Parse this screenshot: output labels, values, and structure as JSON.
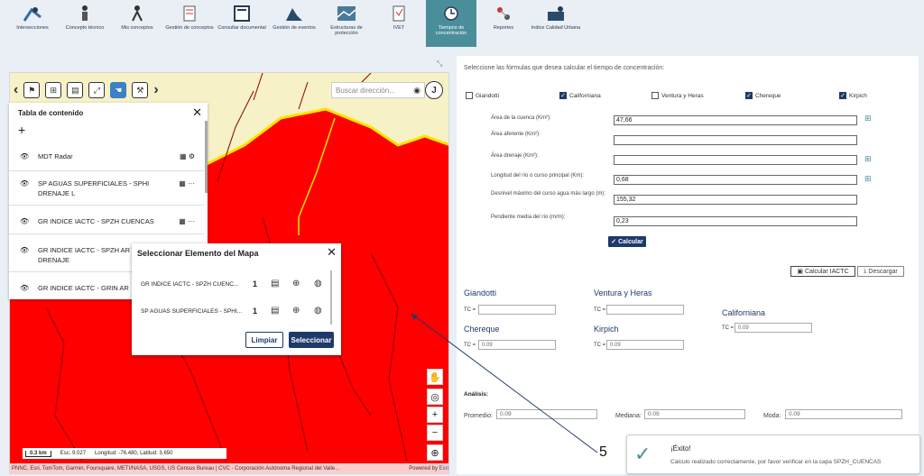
{
  "toolbar": {
    "items": [
      {
        "label": "Intersecciones",
        "icon": "intersections-icon"
      },
      {
        "label": "Concepto técnico",
        "icon": "technical-concept-icon"
      },
      {
        "label": "Mis conceptos",
        "icon": "my-concepts-icon"
      },
      {
        "label": "Gestión de conceptos",
        "icon": "concept-management-icon"
      },
      {
        "label": "Consultar documental",
        "icon": "document-query-icon"
      },
      {
        "label": "Gestión de eventos",
        "icon": "event-management-icon"
      },
      {
        "label": "Estructuras de protección",
        "icon": "protection-structures-icon"
      },
      {
        "label": "IVET",
        "icon": "ivet-icon"
      },
      {
        "label": "Tiempos de concentración",
        "icon": "concentration-time-icon"
      },
      {
        "label": "Reportes",
        "icon": "reports-icon"
      },
      {
        "label": "Indice Calidad Urbana",
        "icon": "urban-quality-icon"
      }
    ],
    "active_index": 8
  },
  "map": {
    "search_placeholder": "Buscar dirección...",
    "j_button": "J",
    "scale": "0.3 km",
    "esc": "Esc. 9.027",
    "coords": "Longitud: -76.480, Latitud: 3.650",
    "attribution": "PNNC, Esri, TomTom, Garmin, Foursquare, METI/NASA, USGS, US Census Bureau | CVC - Corporación Autónoma Regional del Valle...",
    "powered": "Powered by",
    "esri": "Esri"
  },
  "toc": {
    "title": "Tabla de contenido",
    "layers": [
      "MDT Radar",
      "SP AGUAS SUPERFICIALES - SPHI DRENAJE L",
      "GR INDICE IACTC - SPZH CUENCAS",
      "GR INDICE IACTC - SPZH AR DRENAJE",
      "GR INDICE IACTC - GRIN AR"
    ]
  },
  "modal": {
    "title": "Seleccionar Elemento del Mapa",
    "rows": [
      {
        "name": "GR INDICE IACTC - SPZH CUENC...",
        "count": "1"
      },
      {
        "name": "SP AGUAS SUPERFICIALES - SPHI...",
        "count": "1"
      }
    ],
    "btn_clear": "Limpiar",
    "btn_select": "Seleccionar"
  },
  "panel": {
    "intro": "Seleccione las fórmulas que desea calcular el tiempo de concentración:",
    "checkboxes": [
      {
        "label": "Giandotti",
        "checked": false
      },
      {
        "label": "Californiana",
        "checked": true
      },
      {
        "label": "Ventura y Heras",
        "checked": false
      },
      {
        "label": "Chereque",
        "checked": true
      },
      {
        "label": "Kirpich",
        "checked": true
      }
    ],
    "fields": [
      {
        "label": "Área de la cuenca (Km²):",
        "value": "47,66"
      },
      {
        "label": "Área aferente (Km²):",
        "value": ""
      },
      {
        "label": "Área drenaje (Km²):",
        "value": ""
      },
      {
        "label": "Longitud del río o curso principal (Km):",
        "value": "0,68"
      },
      {
        "label": "Desnivel máximo del curso agua más largo (m):",
        "value": "155,32"
      },
      {
        "label": "Pendiente media del río (m/m):",
        "value": "0,23"
      }
    ],
    "calc_btn": "✓ Calcular",
    "iactc_btn": "Calcular IACTC",
    "download_btn": "Descargar",
    "methods": {
      "giandotti": {
        "name": "Giandotti",
        "tc_label": "TC =",
        "tc": ""
      },
      "ventura": {
        "name": "Ventura y Heras",
        "tc_label": "TC =",
        "tc": ""
      },
      "californiana": {
        "name": "Californiana",
        "tc_label": "TC =",
        "tc": "0.09"
      },
      "chereque": {
        "name": "Chereque",
        "tc_label": "TC =",
        "tc": "0.09"
      },
      "kirpich": {
        "name": "Kirpich",
        "tc_label": "TC =",
        "tc": "0.09"
      }
    },
    "analysis": {
      "title": "Análisis:",
      "media_label": "Promedio:",
      "media": "0.09",
      "mediana_label": "Mediana:",
      "mediana": "0.09",
      "moda_label": "Moda:",
      "moda": "0.09"
    }
  },
  "toast": {
    "title": "¡Éxito!",
    "message": "Calculo realizado correctamente, por favor verificar en la capa SPZH_CUENCAS"
  },
  "step_label": "5"
}
